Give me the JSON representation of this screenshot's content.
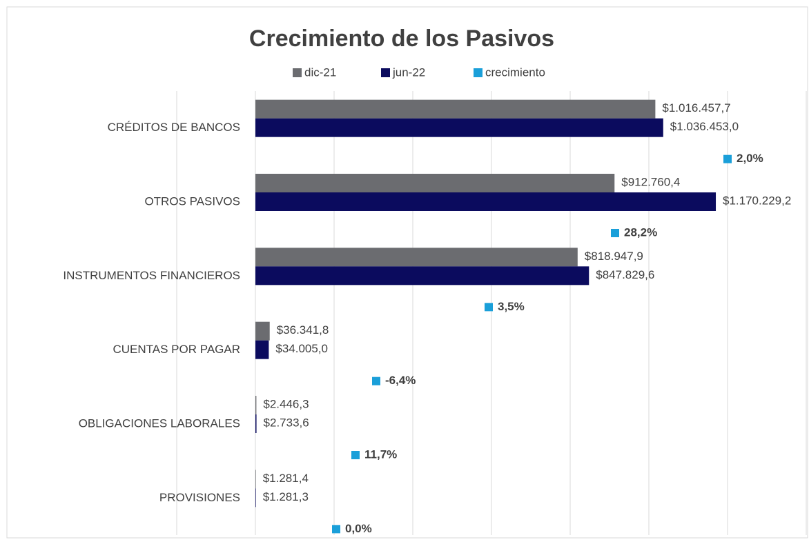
{
  "chart_data": {
    "type": "hbar",
    "title": "Crecimiento de los Pasivos",
    "categories": [
      "CRÉDITOS DE BANCOS",
      "OTROS PASIVOS",
      "INSTRUMENTOS FINANCIEROS",
      "CUENTAS POR PAGAR",
      "OBLIGACIONES LABORALES",
      "PROVISIONES"
    ],
    "series": [
      {
        "name": "dic-21",
        "color": "#6b6c70",
        "values": [
          1016457.7,
          912760.4,
          818947.9,
          36341.8,
          2446.3,
          1281.4
        ],
        "value_labels": [
          "$1.016.457,7",
          "$912.760,4",
          "$818.947,9",
          "$36.341,8",
          "$2.446,3",
          "$1.281,4"
        ]
      },
      {
        "name": "jun-22",
        "color": "#0b0b5e",
        "values": [
          1036453.0,
          1170229.2,
          847829.6,
          34005.0,
          2733.6,
          1281.3
        ],
        "value_labels": [
          "$1.036.453,0",
          "$1.170.229,2",
          "$847.829,6",
          "$34.005,0",
          "$2.733,6",
          "$1.281,3"
        ]
      },
      {
        "name": "crecimiento",
        "color": "#1a9fd9",
        "values": [
          2.0,
          28.2,
          3.5,
          -6.4,
          11.7,
          0.0
        ],
        "value_labels": [
          "2,0%",
          "28,2%",
          "3,5%",
          "-6,4%",
          "11,7%",
          "0,0%"
        ]
      }
    ],
    "xlim": [
      -200000,
      1400000
    ],
    "xticks": [
      -200000,
      0,
      200000,
      400000,
      600000,
      800000,
      1000000,
      1200000,
      1400000
    ],
    "grid": true
  }
}
